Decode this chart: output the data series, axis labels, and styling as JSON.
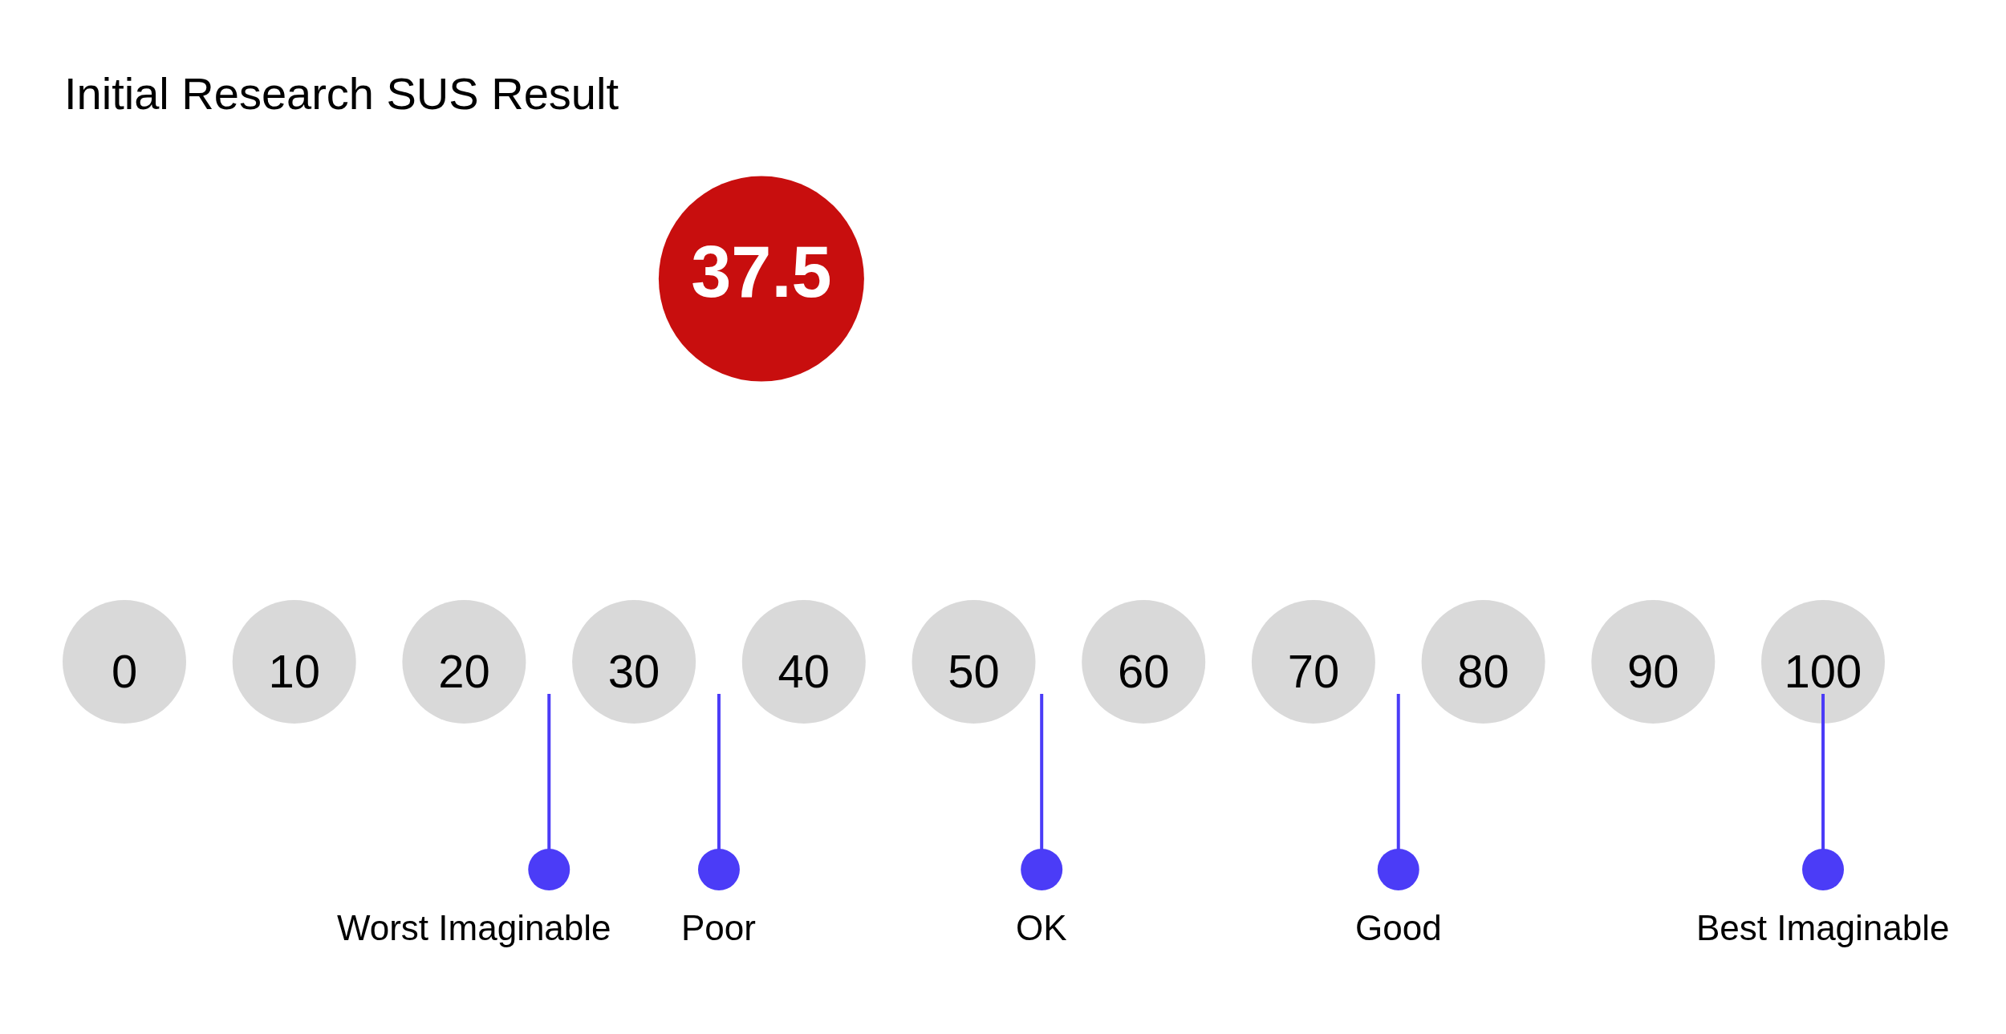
{
  "chart_data": {
    "type": "scatter",
    "orientation": "horizontal",
    "title": "Initial Research SUS Result",
    "categories": [
      null
    ],
    "values": [
      37.5
    ],
    "color": "#c80e0e",
    "marker": "circle",
    "data_labels": true,
    "xlim": [
      0,
      100
    ],
    "xticks": [
      0,
      10,
      20,
      30,
      40,
      50,
      60,
      70,
      80,
      90,
      100
    ],
    "ref_lines": [
      {
        "axis": "x",
        "value": 25,
        "label": "Worst Imaginable",
        "color": "#4b3cf7"
      },
      {
        "axis": "x",
        "value": 35,
        "label": "Poor",
        "color": "#4b3cf7"
      },
      {
        "axis": "x",
        "value": 54,
        "label": "OK",
        "color": "#4b3cf7"
      },
      {
        "axis": "x",
        "value": 75,
        "label": "Good",
        "color": "#4b3cf7"
      },
      {
        "axis": "x",
        "value": 100,
        "label": "Best Imaginable",
        "color": "#4b3cf7"
      }
    ]
  }
}
